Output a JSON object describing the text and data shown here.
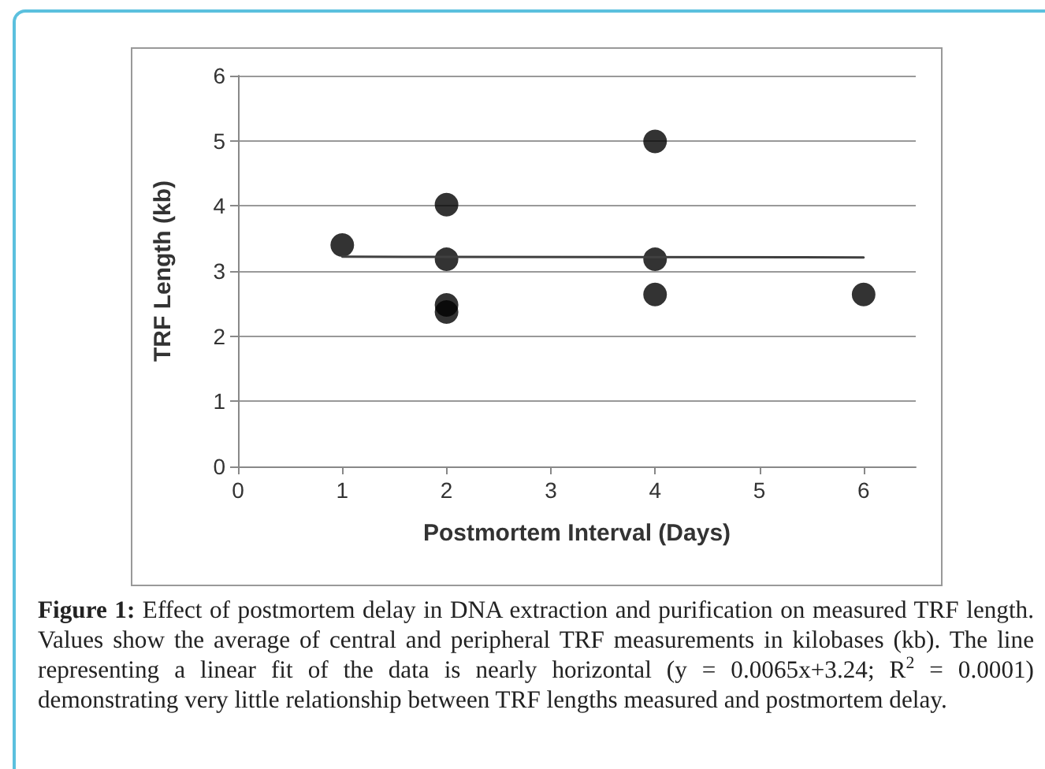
{
  "chart_data": {
    "type": "scatter",
    "xlabel": "Postmortem Interval (Days)",
    "ylabel": "TRF Length (kb)",
    "x": [
      1,
      2,
      2,
      2,
      2,
      4,
      4,
      4,
      6
    ],
    "series": [
      {
        "color": "#000000",
        "values": [
          3.4,
          4.02,
          3.18,
          2.48,
          2.37,
          4.99,
          3.18,
          2.64,
          2.64
        ]
      },
      {
        "type": "line",
        "color": "#404040",
        "x": [
          1,
          6
        ],
        "values": [
          3.22,
          3.21
        ],
        "marker": "none"
      }
    ],
    "xlim": [
      0,
      6.5
    ],
    "xticks": [
      0,
      1,
      2,
      3,
      4,
      5,
      6
    ],
    "ylim": [
      0,
      6
    ],
    "yticks": [
      0,
      1,
      2,
      3,
      4,
      5,
      6
    ],
    "grid": "y",
    "marker": "circle",
    "annotations": [
      "Figure 1:",
      "Effect of postmortem delay in DNA extraction and purification on measured TRF length. Values show the average of central and peripheral TRF measurements in kilobases (kb). The line representing a linear fit of the data is nearly horizontal (y = 0.0065x+3.24; R$^{2}$ = 0.0001) demonstrating very little relationship between TRF lengths measured and postmortem delay."
    ]
  }
}
